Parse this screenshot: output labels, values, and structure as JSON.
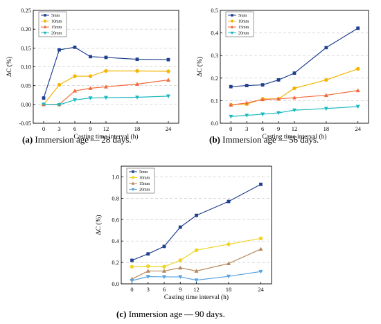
{
  "charts": [
    {
      "type": "line",
      "caption_letter": "(a)",
      "caption_text": " Immersion age — 28 days.",
      "xlabel": "Casting time interval (h)",
      "ylabel": "ΔC (%)",
      "x": [
        0,
        3,
        6,
        9,
        12,
        18,
        24
      ],
      "ylim": [
        -0.05,
        0.25
      ],
      "yticks": [
        "-0.05",
        "0.00",
        "0.05",
        "0.10",
        "0.15",
        "0.20",
        "0.25"
      ],
      "ytick_values": [
        -0.05,
        0,
        0.05,
        0.1,
        0.15,
        0.2,
        0.25
      ],
      "grid": "horizontal dashed",
      "legend": "top-left",
      "series": [
        {
          "name": "5mm",
          "color": "#1f3f8f",
          "marker": "square",
          "values": [
            0.017,
            0.145,
            0.152,
            0.127,
            0.125,
            0.12,
            0.119
          ]
        },
        {
          "name": "10mm",
          "color": "#f5b400",
          "marker": "circle",
          "values": [
            0.0,
            0.052,
            0.075,
            0.075,
            0.089,
            0.089,
            0.088
          ]
        },
        {
          "name": "15mm",
          "color": "#f26a3c",
          "marker": "triangle-up",
          "values": [
            0.0,
            0.0,
            0.036,
            0.043,
            0.047,
            0.054,
            0.065
          ]
        },
        {
          "name": "20mm",
          "color": "#1ab8c0",
          "marker": "triangle-down",
          "values": [
            0.0,
            -0.001,
            0.012,
            0.017,
            0.018,
            0.019,
            0.022
          ]
        }
      ]
    },
    {
      "type": "line",
      "caption_letter": "(b)",
      "caption_text": " Immersion age — 56 days.",
      "xlabel": "Casting time interval (h)",
      "ylabel": "ΔC (%)",
      "x": [
        0,
        3,
        6,
        9,
        12,
        18,
        24
      ],
      "ylim": [
        0,
        0.5
      ],
      "yticks": [
        "0.0",
        "0.1",
        "0.2",
        "0.3",
        "0.4",
        "0.5"
      ],
      "ytick_values": [
        0,
        0.1,
        0.2,
        0.3,
        0.4,
        0.5
      ],
      "grid": "horizontal dashed",
      "legend": "top-left",
      "series": [
        {
          "name": "5mm",
          "color": "#1f3f8f",
          "marker": "square",
          "values": [
            0.162,
            0.167,
            0.17,
            0.192,
            0.222,
            0.335,
            0.421
          ]
        },
        {
          "name": "10mm",
          "color": "#f5b400",
          "marker": "circle",
          "values": [
            0.082,
            0.085,
            0.108,
            0.108,
            0.155,
            0.192,
            0.241
          ]
        },
        {
          "name": "15mm",
          "color": "#f26a3c",
          "marker": "triangle-up",
          "values": [
            0.081,
            0.09,
            0.105,
            0.108,
            0.113,
            0.124,
            0.145
          ]
        },
        {
          "name": "20mm",
          "color": "#1ab8c0",
          "marker": "triangle-down",
          "values": [
            0.03,
            0.035,
            0.04,
            0.046,
            0.058,
            0.065,
            0.074
          ]
        }
      ]
    },
    {
      "type": "line",
      "caption_letter": "(c)",
      "caption_text": " Immersion age — 90 days.",
      "xlabel": "Casting time interval (h)",
      "ylabel": "ΔC (%)",
      "x": [
        0,
        3,
        6,
        9,
        12,
        18,
        24
      ],
      "ylim": [
        0,
        1.1
      ],
      "yticks": [
        "0.0",
        "0.2",
        "0.4",
        "0.6",
        "0.8",
        "1.0"
      ],
      "ytick_values": [
        0,
        0.2,
        0.4,
        0.6,
        0.8,
        1.0
      ],
      "grid": "horizontal dashed",
      "legend": "top-left",
      "series": [
        {
          "name": "5mm",
          "color": "#1f3f8f",
          "marker": "square",
          "values": [
            0.22,
            0.28,
            0.35,
            0.53,
            0.64,
            0.77,
            0.93
          ]
        },
        {
          "name": "10mm",
          "color": "#f0d41e",
          "marker": "circle",
          "values": [
            0.16,
            0.165,
            0.16,
            0.22,
            0.315,
            0.37,
            0.425
          ]
        },
        {
          "name": "15mm",
          "color": "#b7885e",
          "marker": "triangle-up",
          "values": [
            0.045,
            0.12,
            0.12,
            0.15,
            0.12,
            0.19,
            0.325
          ]
        },
        {
          "name": "20mm",
          "color": "#5aa2e0",
          "marker": "triangle-down",
          "values": [
            0.03,
            0.068,
            0.065,
            0.065,
            0.035,
            0.07,
            0.115
          ]
        }
      ]
    }
  ]
}
